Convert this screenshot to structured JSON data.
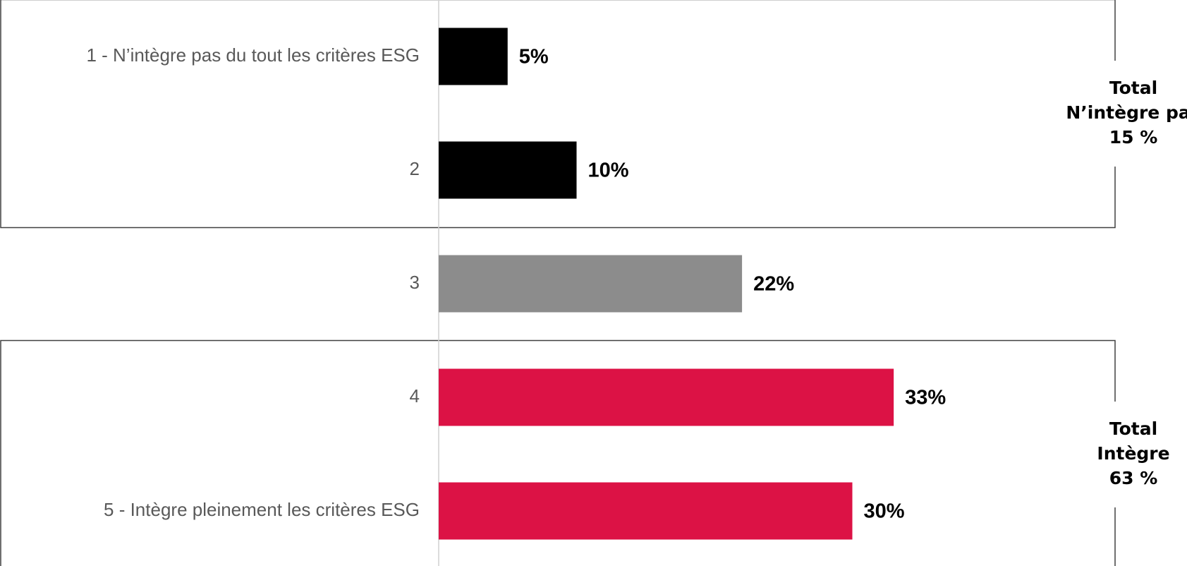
{
  "chart_data": {
    "type": "bar",
    "orientation": "horizontal",
    "categories": [
      "1 - N’intègre pas du tout les critères ESG",
      "2",
      "3",
      "4",
      "5 - Intègre pleinement les critères ESG"
    ],
    "values": [
      5,
      10,
      22,
      33,
      30
    ],
    "value_labels": [
      "5%",
      "10%",
      "22%",
      "33%",
      "30%"
    ],
    "bar_colors": [
      "#000000",
      "#000000",
      "#8c8c8c",
      "#dc1245",
      "#dc1245"
    ],
    "xlim": [
      0,
      36
    ],
    "grid": false,
    "legend": "none",
    "groups": [
      {
        "lines": [
          "Total",
          "N’intègre pas",
          "15 %"
        ],
        "categories": [
          0,
          1
        ],
        "value": 15
      },
      {
        "lines": [
          "Total",
          "Intègre",
          "63 %"
        ],
        "categories": [
          3,
          4
        ],
        "value": 63
      }
    ]
  }
}
